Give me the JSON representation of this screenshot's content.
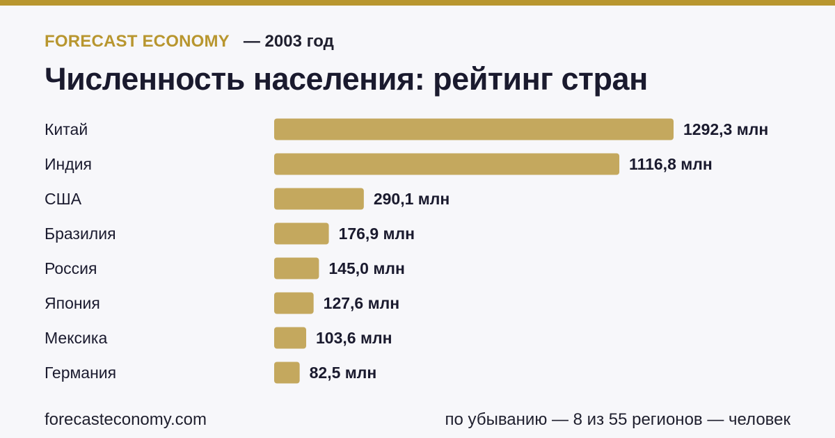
{
  "header": {
    "brand": "FORECAST ECONOMY",
    "year_label": "— 2003 год",
    "title": "Численность населения: рейтинг стран"
  },
  "footer": {
    "site": "forecasteconomy.com",
    "note": "по убыванию — 8 из 55 регионов — человек"
  },
  "colors": {
    "accent": "#b8962f",
    "bar": "#c4a85e",
    "text": "#1a1a2e"
  },
  "chart_data": {
    "type": "bar",
    "orientation": "horizontal",
    "categories": [
      "Китай",
      "Индия",
      "США",
      "Бразилия",
      "Россия",
      "Япония",
      "Мексика",
      "Германия"
    ],
    "values": [
      1292.3,
      1116.8,
      290.1,
      176.9,
      145.0,
      127.6,
      103.6,
      82.5
    ],
    "value_labels": [
      "1292,3 млн",
      "1116,8 млн",
      "290,1 млн",
      "176,9 млн",
      "145,0 млн",
      "127,6 млн",
      "103,6 млн",
      "82,5 млн"
    ],
    "grid": false
  }
}
